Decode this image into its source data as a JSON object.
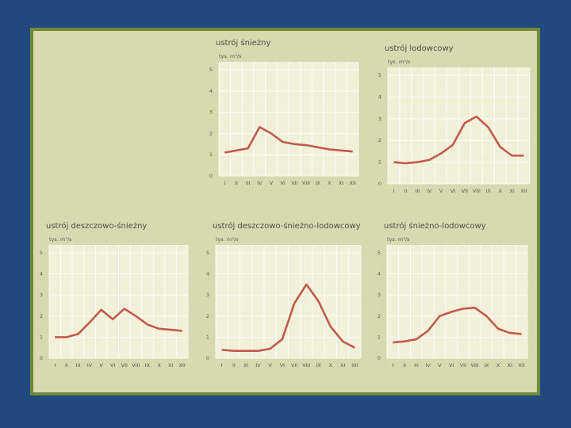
{
  "chart_data": [
    {
      "type": "line",
      "title": "ustrój śnieżny",
      "y_label": "tys. m³/s",
      "categories": [
        "I",
        "II",
        "III",
        "IV",
        "V",
        "VI",
        "VII",
        "VIII",
        "IX",
        "X",
        "XI",
        "XII"
      ],
      "values": [
        1.1,
        1.2,
        1.3,
        2.3,
        2.0,
        1.6,
        1.5,
        1.45,
        1.35,
        1.25,
        1.2,
        1.15
      ],
      "color": "#c05a4c",
      "ylim": [
        0,
        5
      ],
      "yticks": [
        0,
        1,
        2,
        3,
        4,
        5
      ],
      "grid": true
    },
    {
      "type": "line",
      "title": "ustrój lodowcowy",
      "y_label": "tys. m³/s",
      "categories": [
        "I",
        "II",
        "III",
        "IV",
        "V",
        "VI",
        "VII",
        "VIII",
        "IX",
        "X",
        "XI",
        "XII"
      ],
      "values": [
        1.0,
        0.95,
        1.0,
        1.1,
        1.4,
        1.8,
        2.8,
        3.1,
        2.6,
        1.7,
        1.3,
        1.3
      ],
      "color": "#c05a4c",
      "ylim": [
        0,
        5
      ],
      "yticks": [
        0,
        1,
        2,
        3,
        4,
        5
      ],
      "grid": true
    },
    {
      "type": "line",
      "title": "ustrój deszczowo-śnieżny",
      "y_label": "tys. m³/s",
      "categories": [
        "I",
        "II",
        "III",
        "IV",
        "V",
        "VI",
        "VII",
        "VIII",
        "IX",
        "X",
        "XI",
        "XII"
      ],
      "values": [
        1.0,
        1.0,
        1.15,
        1.7,
        2.3,
        1.85,
        2.35,
        2.0,
        1.6,
        1.4,
        1.35,
        1.3
      ],
      "color": "#c05a4c",
      "ylim": [
        0,
        5
      ],
      "yticks": [
        0,
        1,
        2,
        3,
        4,
        5
      ],
      "grid": true
    },
    {
      "type": "line",
      "title": "ustrój deszczowo-śnieżno-lodowcowy",
      "y_label": "tys. m³/s",
      "categories": [
        "I",
        "II",
        "III",
        "IV",
        "V",
        "VI",
        "VII",
        "VIII",
        "IX",
        "X",
        "XI",
        "XII"
      ],
      "values": [
        0.4,
        0.35,
        0.35,
        0.35,
        0.45,
        0.9,
        2.6,
        3.5,
        2.7,
        1.5,
        0.8,
        0.5
      ],
      "color": "#c05a4c",
      "ylim": [
        0,
        5
      ],
      "yticks": [
        0,
        1,
        2,
        3,
        4,
        5
      ],
      "grid": true
    },
    {
      "type": "line",
      "title": "ustrój śnieżno-lodowcowy",
      "y_label": "tys. m³/s",
      "categories": [
        "I",
        "II",
        "III",
        "IV",
        "V",
        "VI",
        "VII",
        "VIII",
        "IX",
        "X",
        "XI",
        "XII"
      ],
      "values": [
        0.75,
        0.8,
        0.9,
        1.3,
        2.0,
        2.2,
        2.35,
        2.4,
        2.0,
        1.4,
        1.2,
        1.15
      ],
      "color": "#c05a4c",
      "ylim": [
        0,
        5
      ],
      "yticks": [
        0,
        1,
        2,
        3,
        4,
        5
      ],
      "grid": true
    }
  ]
}
